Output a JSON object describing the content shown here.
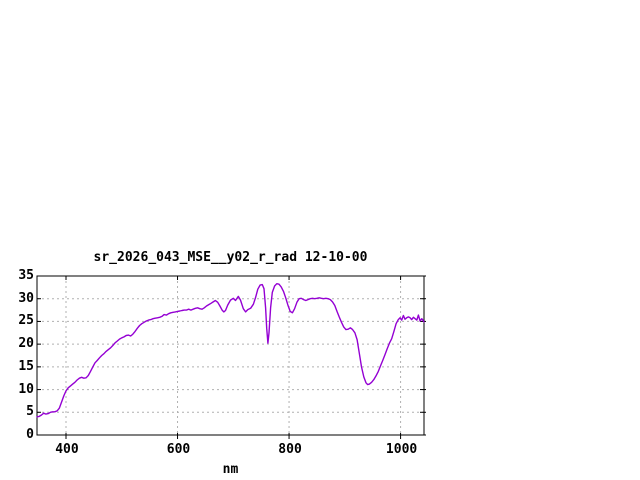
{
  "chart_data": {
    "type": "line",
    "title": "sr_2026_043_MSE__y02_r_rad 12-10-00",
    "xlabel": "nm",
    "ylabel": "",
    "xlim": [
      348,
      1042
    ],
    "ylim": [
      0,
      35
    ],
    "xticks": [
      400,
      600,
      800,
      1000
    ],
    "yticks": [
      0,
      5,
      10,
      15,
      20,
      25,
      30,
      35
    ],
    "grid": true,
    "legend": "none",
    "colors": {
      "line": "#9400d3",
      "grid": "#b0b0b0",
      "border": "#000000",
      "text": "#000000",
      "background": "#ffffff"
    },
    "series": [
      {
        "name": "sr_2026_043_MSE__y02_r_rad",
        "points": [
          [
            348,
            4.0
          ],
          [
            352,
            4.1
          ],
          [
            356,
            4.4
          ],
          [
            360,
            4.8
          ],
          [
            364,
            4.6
          ],
          [
            368,
            4.7
          ],
          [
            372,
            5.0
          ],
          [
            376,
            5.1
          ],
          [
            380,
            5.1
          ],
          [
            384,
            5.3
          ],
          [
            388,
            5.9
          ],
          [
            392,
            7.2
          ],
          [
            396,
            8.6
          ],
          [
            400,
            9.7
          ],
          [
            404,
            10.4
          ],
          [
            408,
            10.8
          ],
          [
            412,
            11.2
          ],
          [
            416,
            11.6
          ],
          [
            420,
            12.1
          ],
          [
            424,
            12.5
          ],
          [
            428,
            12.7
          ],
          [
            432,
            12.5
          ],
          [
            436,
            12.6
          ],
          [
            440,
            13.1
          ],
          [
            444,
            14.0
          ],
          [
            448,
            15.0
          ],
          [
            452,
            15.9
          ],
          [
            456,
            16.4
          ],
          [
            460,
            17.0
          ],
          [
            464,
            17.5
          ],
          [
            468,
            17.9
          ],
          [
            472,
            18.4
          ],
          [
            476,
            18.8
          ],
          [
            480,
            19.2
          ],
          [
            484,
            19.7
          ],
          [
            488,
            20.3
          ],
          [
            492,
            20.7
          ],
          [
            496,
            21.1
          ],
          [
            500,
            21.4
          ],
          [
            504,
            21.6
          ],
          [
            508,
            21.9
          ],
          [
            512,
            22.0
          ],
          [
            516,
            21.8
          ],
          [
            520,
            22.2
          ],
          [
            524,
            22.8
          ],
          [
            528,
            23.5
          ],
          [
            532,
            24.1
          ],
          [
            536,
            24.5
          ],
          [
            540,
            24.8
          ],
          [
            544,
            25.1
          ],
          [
            548,
            25.3
          ],
          [
            552,
            25.4
          ],
          [
            556,
            25.6
          ],
          [
            560,
            25.7
          ],
          [
            564,
            25.8
          ],
          [
            568,
            25.9
          ],
          [
            572,
            26.1
          ],
          [
            576,
            26.5
          ],
          [
            580,
            26.4
          ],
          [
            584,
            26.7
          ],
          [
            588,
            26.9
          ],
          [
            592,
            27.0
          ],
          [
            596,
            27.1
          ],
          [
            600,
            27.2
          ],
          [
            604,
            27.3
          ],
          [
            608,
            27.4
          ],
          [
            612,
            27.5
          ],
          [
            616,
            27.5
          ],
          [
            620,
            27.7
          ],
          [
            624,
            27.5
          ],
          [
            628,
            27.7
          ],
          [
            632,
            27.9
          ],
          [
            636,
            28.0
          ],
          [
            640,
            27.8
          ],
          [
            644,
            27.7
          ],
          [
            648,
            28.0
          ],
          [
            652,
            28.4
          ],
          [
            656,
            28.7
          ],
          [
            660,
            29.0
          ],
          [
            664,
            29.3
          ],
          [
            668,
            29.6
          ],
          [
            672,
            29.2
          ],
          [
            676,
            28.4
          ],
          [
            680,
            27.5
          ],
          [
            683,
            27.1
          ],
          [
            686,
            27.4
          ],
          [
            690,
            28.6
          ],
          [
            695,
            29.7
          ],
          [
            700,
            30.1
          ],
          [
            704,
            29.6
          ],
          [
            709,
            30.5
          ],
          [
            713,
            29.7
          ],
          [
            718,
            27.8
          ],
          [
            722,
            27.1
          ],
          [
            726,
            27.6
          ],
          [
            731,
            27.9
          ],
          [
            736,
            28.8
          ],
          [
            740,
            30.3
          ],
          [
            744,
            32.1
          ],
          [
            748,
            33.0
          ],
          [
            752,
            33.1
          ],
          [
            755,
            32.2
          ],
          [
            758,
            28.0
          ],
          [
            760,
            23.5
          ],
          [
            762,
            20.2
          ],
          [
            764,
            22.5
          ],
          [
            767,
            28.0
          ],
          [
            770,
            31.4
          ],
          [
            774,
            32.8
          ],
          [
            778,
            33.3
          ],
          [
            782,
            33.2
          ],
          [
            786,
            32.6
          ],
          [
            790,
            31.6
          ],
          [
            794,
            30.2
          ],
          [
            798,
            28.6
          ],
          [
            802,
            27.2
          ],
          [
            806,
            26.9
          ],
          [
            810,
            27.8
          ],
          [
            814,
            29.2
          ],
          [
            818,
            30.0
          ],
          [
            822,
            30.1
          ],
          [
            826,
            29.8
          ],
          [
            830,
            29.6
          ],
          [
            834,
            29.8
          ],
          [
            838,
            30.0
          ],
          [
            842,
            30.1
          ],
          [
            846,
            30.0
          ],
          [
            850,
            30.1
          ],
          [
            854,
            30.2
          ],
          [
            858,
            30.1
          ],
          [
            862,
            30.0
          ],
          [
            866,
            30.1
          ],
          [
            870,
            30.0
          ],
          [
            874,
            29.8
          ],
          [
            878,
            29.3
          ],
          [
            882,
            28.5
          ],
          [
            886,
            27.2
          ],
          [
            890,
            26.0
          ],
          [
            894,
            24.8
          ],
          [
            898,
            23.8
          ],
          [
            902,
            23.2
          ],
          [
            906,
            23.3
          ],
          [
            910,
            23.6
          ],
          [
            914,
            23.2
          ],
          [
            918,
            22.5
          ],
          [
            922,
            21.0
          ],
          [
            926,
            18.0
          ],
          [
            930,
            15.0
          ],
          [
            934,
            12.8
          ],
          [
            938,
            11.5
          ],
          [
            941,
            11.1
          ],
          [
            944,
            11.2
          ],
          [
            948,
            11.6
          ],
          [
            952,
            12.2
          ],
          [
            956,
            13.0
          ],
          [
            960,
            14.0
          ],
          [
            964,
            15.2
          ],
          [
            968,
            16.4
          ],
          [
            972,
            17.7
          ],
          [
            976,
            19.0
          ],
          [
            980,
            20.2
          ],
          [
            984,
            21.2
          ],
          [
            988,
            22.8
          ],
          [
            992,
            24.5
          ],
          [
            996,
            25.4
          ],
          [
            999,
            25.8
          ],
          [
            1002,
            25.3
          ],
          [
            1005,
            26.3
          ],
          [
            1008,
            25.5
          ],
          [
            1011,
            25.8
          ],
          [
            1014,
            26.0
          ],
          [
            1017,
            25.8
          ],
          [
            1020,
            25.4
          ],
          [
            1023,
            25.9
          ],
          [
            1026,
            25.6
          ],
          [
            1029,
            25.3
          ],
          [
            1032,
            26.4
          ],
          [
            1035,
            25.1
          ],
          [
            1038,
            25.6
          ],
          [
            1042,
            24.9
          ]
        ]
      }
    ]
  }
}
